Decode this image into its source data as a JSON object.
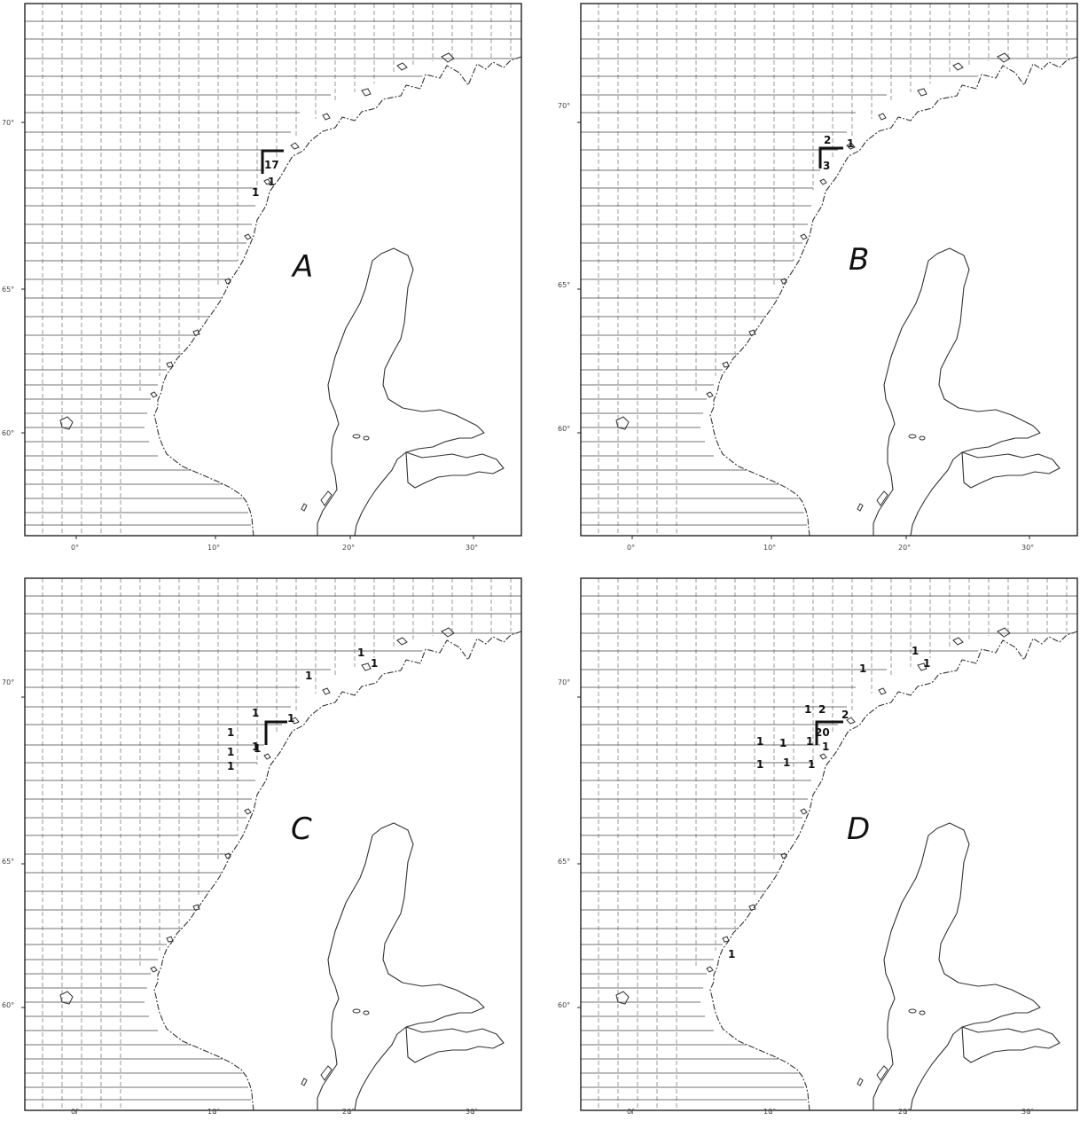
{
  "panels": [
    {
      "id": "A",
      "label": "A",
      "lat_labels": [
        "70°",
        "65°",
        "60°"
      ],
      "lon_labels": [
        "0°",
        "10°",
        "20°",
        "30°"
      ],
      "counts": [
        "17",
        "1",
        "1"
      ]
    },
    {
      "id": "B",
      "label": "B",
      "lat_labels": [
        "70°",
        "65°",
        "60°"
      ],
      "lon_labels": [
        "0°",
        "10°",
        "20°",
        "30°"
      ],
      "counts": [
        "2",
        "1",
        "3"
      ]
    },
    {
      "id": "C",
      "label": "C",
      "lat_labels": [
        "70°",
        "65°",
        "60°"
      ],
      "lon_labels": [
        "0°",
        "10°",
        "20°",
        "30°"
      ],
      "counts": [
        "1",
        "1",
        "1",
        "1",
        "1",
        "1",
        "1",
        "1",
        "1",
        "1"
      ]
    },
    {
      "id": "D",
      "label": "D",
      "lat_labels": [
        "70°",
        "65°",
        "60°"
      ],
      "lon_labels": [
        "0°",
        "10°",
        "20°",
        "30°"
      ],
      "counts": [
        "1",
        "1",
        "1",
        "1",
        "2",
        "2",
        "20",
        "1",
        "1",
        "1",
        "1",
        "1",
        "1",
        "1",
        "1"
      ]
    }
  ]
}
